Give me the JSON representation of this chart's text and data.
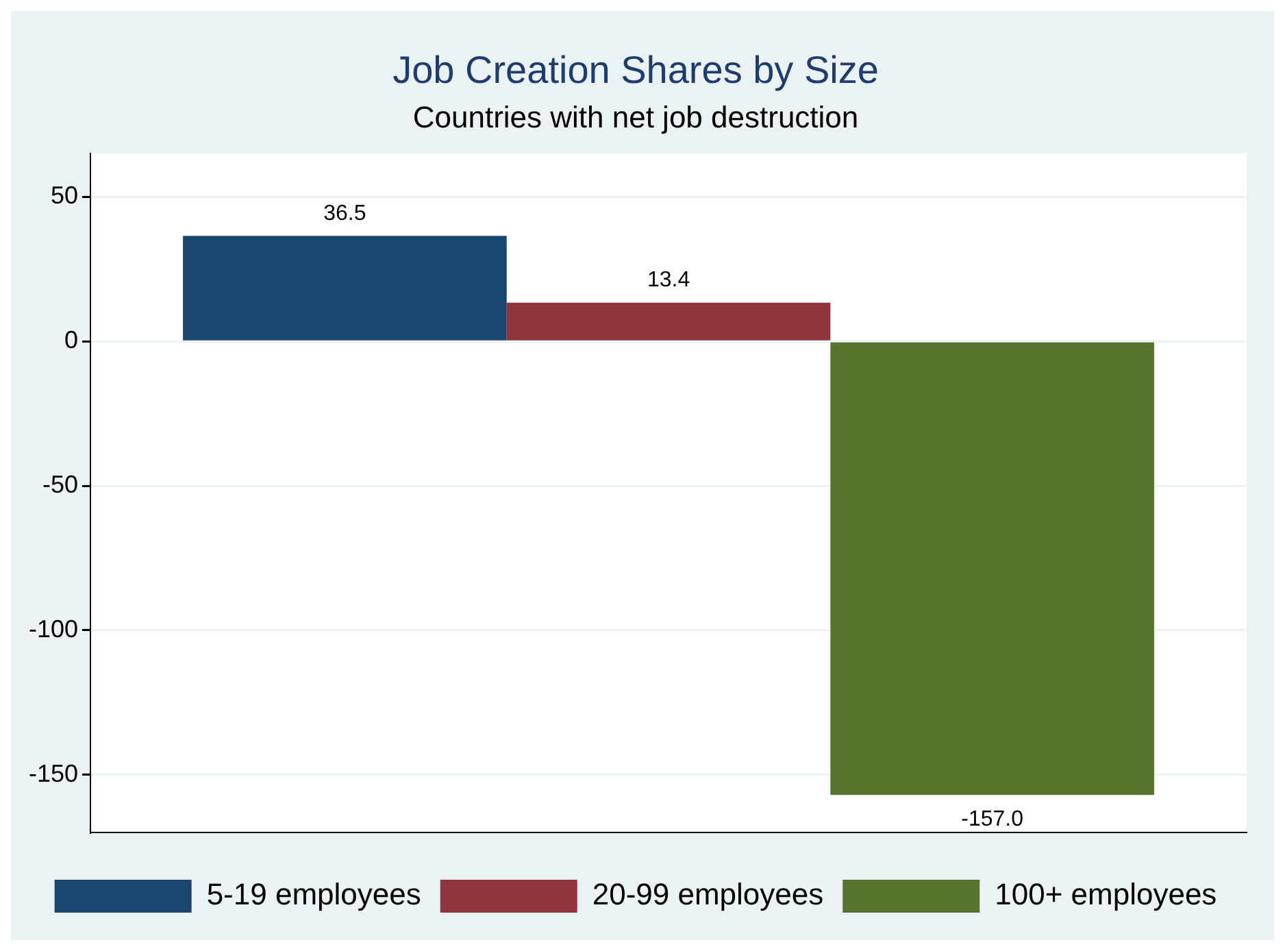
{
  "chart_data": {
    "type": "bar",
    "title": "Job Creation Shares by Size",
    "subtitle": "Countries with net job destruction",
    "categories": [
      null
    ],
    "series": [
      {
        "name": "5-19 employees",
        "color": "#1a476f",
        "values": [
          36.5
        ],
        "value_labels": [
          "36.5"
        ]
      },
      {
        "name": "20-99 employees",
        "color": "#90353b",
        "values": [
          13.4
        ],
        "value_labels": [
          "13.4"
        ]
      },
      {
        "name": "100+ employees",
        "color": "#55752f",
        "values": [
          -157
        ],
        "value_labels": [
          "-157.0"
        ]
      }
    ],
    "ylim": [
      -170,
      65
    ],
    "yticks": [
      -150,
      -100,
      -50,
      0,
      50
    ],
    "grid": "y",
    "legend": "bottom"
  }
}
